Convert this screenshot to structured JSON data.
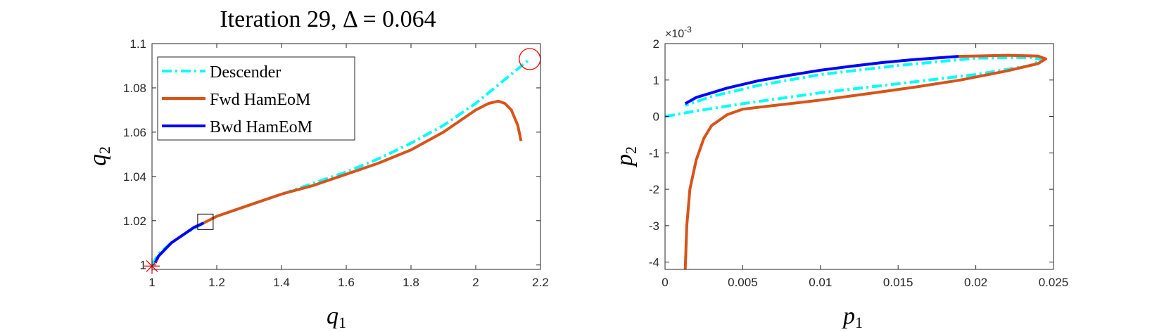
{
  "chart_data": [
    {
      "type": "line",
      "title": "Iteration 29, Δ = 0.064",
      "xlabel": {
        "main": "q",
        "sub": "1"
      },
      "ylabel": {
        "main": "q",
        "sub": "2"
      },
      "xlim": [
        1,
        2.2
      ],
      "ylim": [
        0.998,
        1.1
      ],
      "xticks": [
        1,
        1.2,
        1.4,
        1.6,
        1.8,
        2,
        2.2
      ],
      "xtick_labels": [
        "1",
        "1.2",
        "1.4",
        "1.6",
        "1.8",
        "2",
        "2.2"
      ],
      "yticks": [
        1,
        1.02,
        1.04,
        1.06,
        1.08,
        1.1
      ],
      "ytick_labels": [
        "1",
        "1.02",
        "1.04",
        "1.06",
        "1.08",
        "1.1"
      ],
      "grid": false,
      "legend": {
        "position": "top-left",
        "entries": [
          "Descender",
          "Fwd HamEoM",
          "Bwd HamEoM"
        ]
      },
      "series": [
        {
          "name": "Descender",
          "color": "#00ffff",
          "style": "dashdot",
          "x": [
            1.0,
            1.02,
            1.06,
            1.1,
            1.16,
            1.2,
            1.3,
            1.4,
            1.5,
            1.6,
            1.7,
            1.8,
            1.9,
            1.95,
            2.0,
            2.05,
            2.1,
            2.167
          ],
          "y": [
            1.0,
            1.005,
            1.01,
            1.014,
            1.019,
            1.022,
            1.027,
            1.032,
            1.037,
            1.042,
            1.048,
            1.055,
            1.063,
            1.068,
            1.073,
            1.079,
            1.085,
            1.093
          ]
        },
        {
          "name": "Fwd HamEoM",
          "color": "#d95319",
          "style": "solid",
          "x": [
            1.16,
            1.2,
            1.3,
            1.4,
            1.5,
            1.6,
            1.7,
            1.8,
            1.9,
            1.95,
            2.0,
            2.04,
            2.07,
            2.09,
            2.11,
            2.13,
            2.14
          ],
          "y": [
            1.019,
            1.022,
            1.027,
            1.032,
            1.036,
            1.041,
            1.046,
            1.052,
            1.06,
            1.065,
            1.07,
            1.073,
            1.074,
            1.073,
            1.07,
            1.063,
            1.056
          ]
        },
        {
          "name": "Bwd HamEoM",
          "color": "#0000ff",
          "style": "solid",
          "x": [
            1.01,
            1.02,
            1.04,
            1.06,
            1.08,
            1.1,
            1.13,
            1.16
          ],
          "y": [
            1.001,
            1.004,
            1.007,
            1.01,
            1.012,
            1.014,
            1.017,
            1.019
          ]
        }
      ],
      "markers": [
        {
          "kind": "star",
          "x": 1.0,
          "y": 0.9995,
          "color": "#ff0000"
        },
        {
          "kind": "square",
          "x": 1.165,
          "y": 1.0195,
          "color": "#000000"
        },
        {
          "kind": "circle",
          "x": 2.167,
          "y": 1.093,
          "color": "#ff0000"
        }
      ]
    },
    {
      "type": "line",
      "title": "",
      "xlabel": {
        "main": "p",
        "sub": "1"
      },
      "ylabel": {
        "main": "p",
        "sub": "2"
      },
      "y_exponent": {
        "base": "×10",
        "power": "-3"
      },
      "xlim": [
        0,
        0.025
      ],
      "ylim": [
        -4.2,
        2
      ],
      "xticks": [
        0,
        0.005,
        0.01,
        0.015,
        0.02,
        0.025
      ],
      "xtick_labels": [
        "0",
        "0.005",
        "0.01",
        "0.015",
        "0.02",
        "0.025"
      ],
      "yticks": [
        -4,
        -3,
        -2,
        -1,
        0,
        1,
        2
      ],
      "ytick_labels": [
        "-4",
        "-3",
        "-2",
        "-1",
        "0",
        "1",
        "2"
      ],
      "grid": false,
      "series": [
        {
          "name": "Descender",
          "color": "#00ffff",
          "style": "dashdot",
          "x": [
            0.0,
            0.002,
            0.005,
            0.01,
            0.015,
            0.02,
            0.0235,
            0.0243,
            0.0235,
            0.02,
            0.015,
            0.01,
            0.006,
            0.003,
            0.0013
          ],
          "y": [
            0.0,
            0.15,
            0.35,
            0.65,
            0.9,
            1.15,
            1.4,
            1.56,
            1.62,
            1.6,
            1.4,
            1.15,
            0.85,
            0.55,
            0.3
          ]
        },
        {
          "name": "Fwd HamEoM",
          "color": "#d95319",
          "style": "solid",
          "x": [
            0.0013,
            0.0014,
            0.0016,
            0.002,
            0.0025,
            0.003,
            0.004,
            0.005,
            0.007,
            0.01,
            0.013,
            0.016,
            0.019,
            0.022,
            0.024,
            0.0245,
            0.024,
            0.022,
            0.0189
          ],
          "y": [
            -4.2,
            -3.0,
            -2.0,
            -1.2,
            -0.6,
            -0.25,
            0.05,
            0.2,
            0.3,
            0.45,
            0.62,
            0.8,
            1.0,
            1.25,
            1.45,
            1.58,
            1.66,
            1.68,
            1.65
          ]
        },
        {
          "name": "Bwd HamEoM",
          "color": "#0000ff",
          "style": "solid",
          "x": [
            0.0013,
            0.002,
            0.004,
            0.006,
            0.008,
            0.01,
            0.012,
            0.014,
            0.016,
            0.0189
          ],
          "y": [
            0.35,
            0.52,
            0.78,
            0.98,
            1.13,
            1.27,
            1.38,
            1.48,
            1.56,
            1.65
          ]
        }
      ]
    }
  ]
}
